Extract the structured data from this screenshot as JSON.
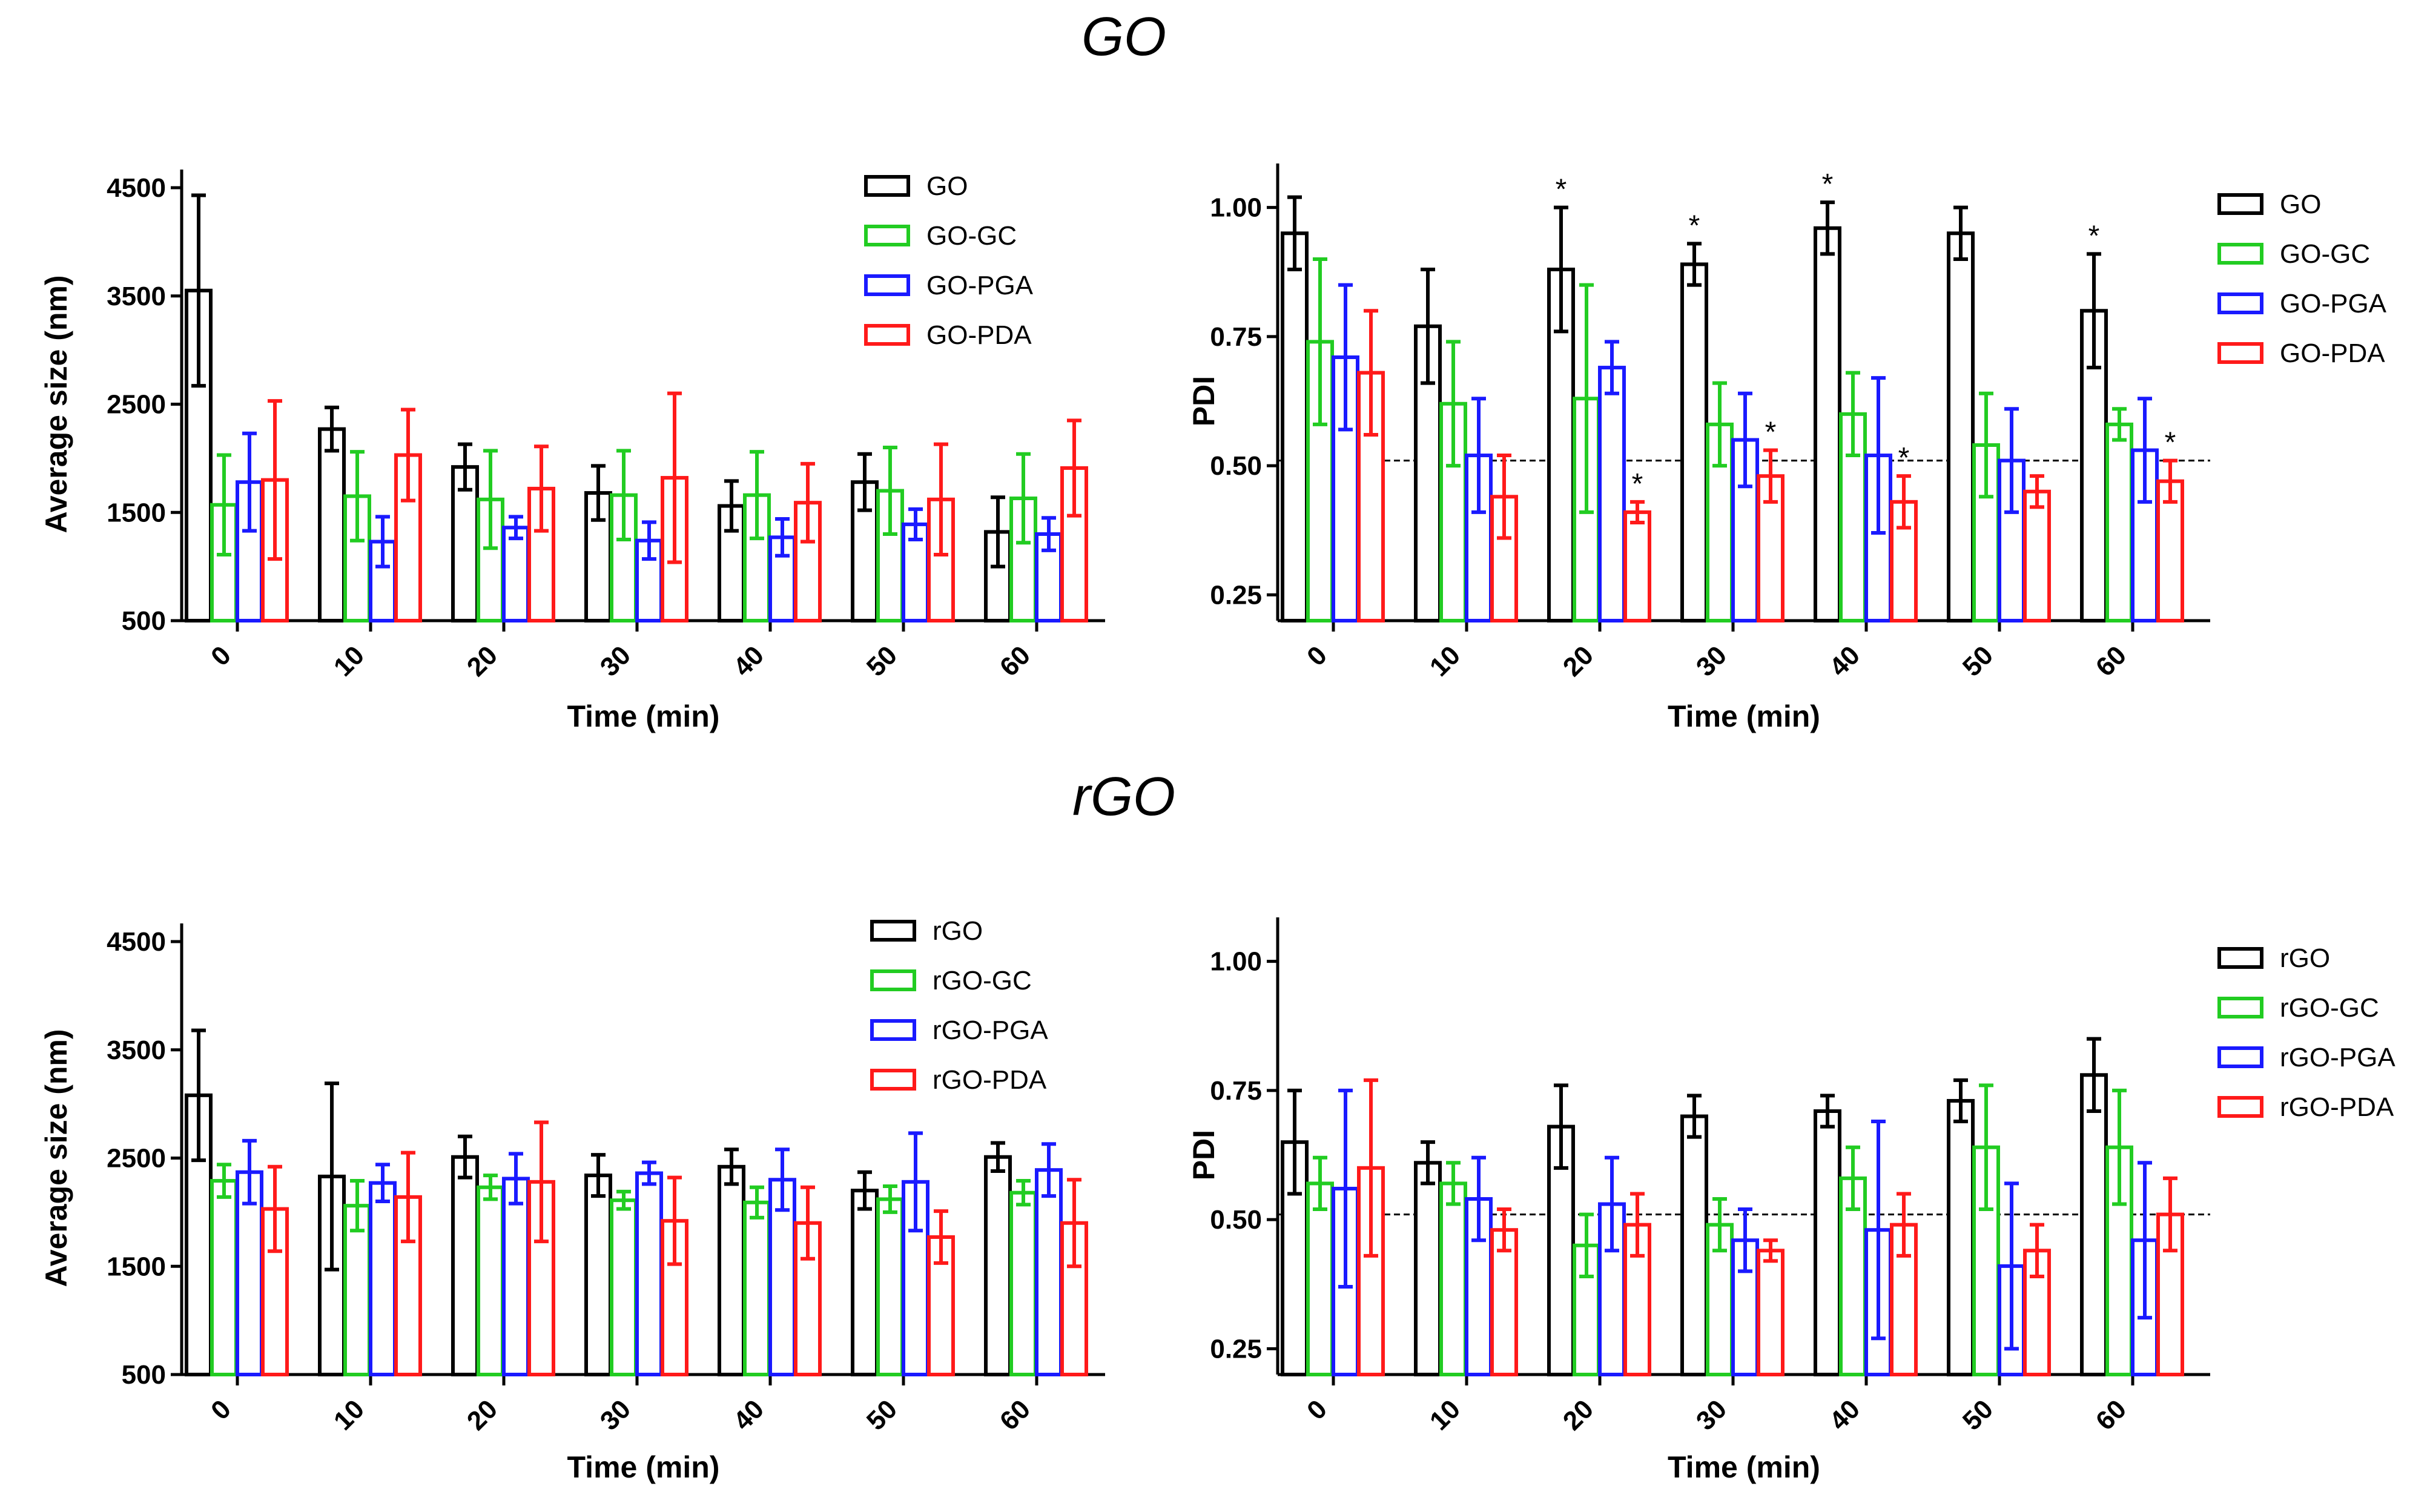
{
  "figure_titles": {
    "top": "GO",
    "bottom": "rGO"
  },
  "colors": {
    "black": "#000000",
    "green": "#22cc22",
    "blue": "#1a1aff",
    "red": "#ff1a1a"
  },
  "chart_data": [
    {
      "id": "go-size",
      "type": "bar",
      "xlabel": "Time (min)",
      "ylabel": "Average size (nm)",
      "categories": [
        "0",
        "10",
        "20",
        "30",
        "40",
        "50",
        "60"
      ],
      "ylim": [
        500,
        4500
      ],
      "yticks": [
        500,
        1500,
        2500,
        3500,
        4500
      ],
      "yticklabels": [
        "500",
        "1500",
        "2500",
        "3500",
        "4500"
      ],
      "series": [
        {
          "name": "GO",
          "color": "#000000",
          "values": [
            3550,
            2270,
            1920,
            1680,
            1560,
            1780,
            1320
          ],
          "errors": [
            880,
            200,
            210,
            250,
            230,
            260,
            320
          ]
        },
        {
          "name": "GO-GC",
          "color": "#22cc22",
          "values": [
            1570,
            1650,
            1620,
            1660,
            1660,
            1700,
            1630
          ],
          "errors": [
            460,
            410,
            450,
            410,
            400,
            400,
            410
          ]
        },
        {
          "name": "GO-PGA",
          "color": "#1a1aff",
          "values": [
            1780,
            1230,
            1360,
            1240,
            1270,
            1390,
            1300
          ],
          "errors": [
            450,
            230,
            100,
            170,
            170,
            140,
            150
          ]
        },
        {
          "name": "GO-PDA",
          "color": "#ff1a1a",
          "values": [
            1800,
            2030,
            1720,
            1820,
            1590,
            1620,
            1910
          ],
          "errors": [
            730,
            420,
            390,
            780,
            360,
            510,
            440
          ]
        }
      ]
    },
    {
      "id": "go-pdi",
      "type": "bar",
      "xlabel": "Time (min)",
      "ylabel": "PDI",
      "categories": [
        "0",
        "10",
        "20",
        "30",
        "40",
        "50",
        "60"
      ],
      "ylim": [
        0.2,
        1.05
      ],
      "yticks": [
        0.25,
        0.5,
        0.75,
        1.0
      ],
      "yticklabels": [
        "0.25",
        "0.50",
        "0.75",
        "1.00"
      ],
      "reference_line": 0.51,
      "annotation_symbol": "*",
      "series": [
        {
          "name": "GO",
          "color": "#000000",
          "values": [
            0.95,
            0.77,
            0.88,
            0.89,
            0.96,
            0.95,
            0.8
          ],
          "errors": [
            0.07,
            0.11,
            0.12,
            0.04,
            0.05,
            0.05,
            0.11
          ],
          "stars": [
            false,
            false,
            true,
            true,
            true,
            false,
            true
          ]
        },
        {
          "name": "GO-GC",
          "color": "#22cc22",
          "values": [
            0.74,
            0.62,
            0.63,
            0.58,
            0.6,
            0.54,
            0.58
          ],
          "errors": [
            0.16,
            0.12,
            0.22,
            0.08,
            0.08,
            0.1,
            0.03
          ],
          "stars": [
            false,
            false,
            false,
            false,
            false,
            false,
            false
          ]
        },
        {
          "name": "GO-PGA",
          "color": "#1a1aff",
          "values": [
            0.71,
            0.52,
            0.69,
            0.55,
            0.52,
            0.51,
            0.53
          ],
          "errors": [
            0.14,
            0.11,
            0.05,
            0.09,
            0.15,
            0.1,
            0.1
          ],
          "stars": [
            false,
            false,
            false,
            false,
            false,
            false,
            false
          ]
        },
        {
          "name": "GO-PDA",
          "color": "#ff1a1a",
          "values": [
            0.68,
            0.44,
            0.41,
            0.48,
            0.43,
            0.45,
            0.47
          ],
          "errors": [
            0.12,
            0.08,
            0.02,
            0.05,
            0.05,
            0.03,
            0.04
          ],
          "stars": [
            false,
            false,
            true,
            true,
            true,
            false,
            true
          ]
        }
      ]
    },
    {
      "id": "rgo-size",
      "type": "bar",
      "xlabel": "Time (min)",
      "ylabel": "Average size (nm)",
      "categories": [
        "0",
        "10",
        "20",
        "30",
        "40",
        "50",
        "60"
      ],
      "ylim": [
        500,
        4500
      ],
      "yticks": [
        500,
        1500,
        2500,
        3500,
        4500
      ],
      "yticklabels": [
        "500",
        "1500",
        "2500",
        "3500",
        "4500"
      ],
      "series": [
        {
          "name": "rGO",
          "color": "#000000",
          "values": [
            3080,
            2330,
            2510,
            2340,
            2420,
            2200,
            2510
          ],
          "errors": [
            600,
            860,
            190,
            190,
            160,
            170,
            130
          ]
        },
        {
          "name": "rGO-GC",
          "color": "#22cc22",
          "values": [
            2290,
            2060,
            2230,
            2110,
            2090,
            2120,
            2180
          ],
          "errors": [
            150,
            230,
            110,
            80,
            140,
            120,
            110
          ]
        },
        {
          "name": "rGO-PGA",
          "color": "#1a1aff",
          "values": [
            2370,
            2270,
            2310,
            2360,
            2300,
            2280,
            2390
          ],
          "errors": [
            290,
            170,
            230,
            100,
            280,
            450,
            240
          ]
        },
        {
          "name": "rGO-PDA",
          "color": "#ff1a1a",
          "values": [
            2030,
            2140,
            2280,
            1920,
            1900,
            1770,
            1900
          ],
          "errors": [
            390,
            410,
            550,
            400,
            330,
            240,
            400
          ]
        }
      ]
    },
    {
      "id": "rgo-pdi",
      "type": "bar",
      "xlabel": "Time (min)",
      "ylabel": "PDI",
      "categories": [
        "0",
        "10",
        "20",
        "30",
        "40",
        "50",
        "60"
      ],
      "ylim": [
        0.2,
        1.05
      ],
      "yticks": [
        0.25,
        0.5,
        0.75,
        1.0
      ],
      "yticklabels": [
        "0.25",
        "0.50",
        "0.75",
        "1.00"
      ],
      "reference_line": 0.51,
      "series": [
        {
          "name": "rGO",
          "color": "#000000",
          "values": [
            0.65,
            0.61,
            0.68,
            0.7,
            0.71,
            0.73,
            0.78
          ],
          "errors": [
            0.1,
            0.04,
            0.08,
            0.04,
            0.03,
            0.04,
            0.07
          ]
        },
        {
          "name": "rGO-GC",
          "color": "#22cc22",
          "values": [
            0.57,
            0.57,
            0.45,
            0.49,
            0.58,
            0.64,
            0.64
          ],
          "errors": [
            0.05,
            0.04,
            0.06,
            0.05,
            0.06,
            0.12,
            0.11
          ]
        },
        {
          "name": "rGO-PGA",
          "color": "#1a1aff",
          "values": [
            0.56,
            0.54,
            0.53,
            0.46,
            0.48,
            0.41,
            0.46
          ],
          "errors": [
            0.19,
            0.08,
            0.09,
            0.06,
            0.21,
            0.16,
            0.15
          ]
        },
        {
          "name": "rGO-PDA",
          "color": "#ff1a1a",
          "values": [
            0.6,
            0.48,
            0.49,
            0.44,
            0.49,
            0.44,
            0.51
          ],
          "errors": [
            0.17,
            0.04,
            0.06,
            0.02,
            0.06,
            0.05,
            0.07
          ]
        }
      ]
    }
  ]
}
